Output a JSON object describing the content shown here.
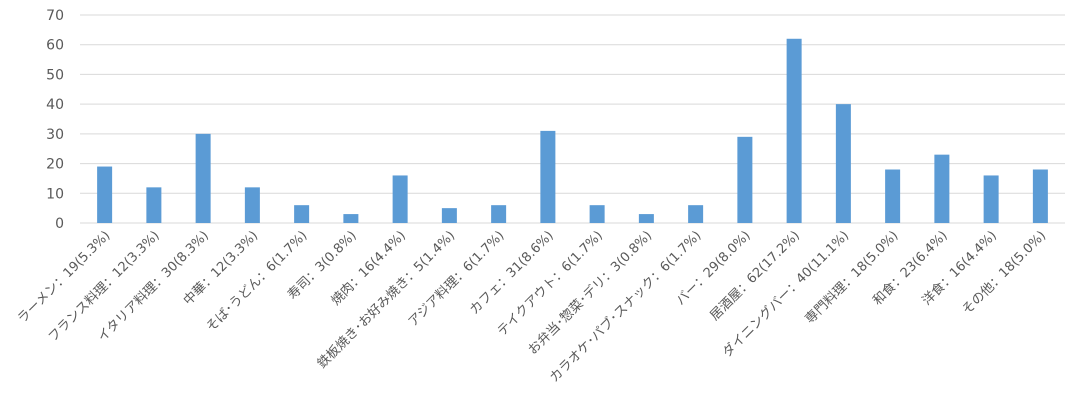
{
  "chart_data": {
    "type": "bar",
    "categories": [
      "ラーメン：19(5.3%)",
      "フランス料理：12(3.3%)",
      "イタリア料理：30(8.3%)",
      "中華：12(3.3%)",
      "そば･うどん：6(1.7%)",
      "寿司：3(0.8%)",
      "焼肉：16(4.4%)",
      "鉄板焼き･お好み焼き：5(1.4%)",
      "アジア料理：6(1.7%)",
      "カフェ：31(8.6%)",
      "テイクアウト：6(1.7%)",
      "お弁当･惣菜･デリ：3(0.8%)",
      "カラオケ･パブ･スナック：6(1.7%)",
      "バー：29(8.0%)",
      "居酒屋：62(17.2%)",
      "ダイニングバー：40(11.1%)",
      "専門料理：18(5.0%)",
      "和食：23(6.4%)",
      "洋食：16(4.4%)",
      "その他：18(5.0%)"
    ],
    "values": [
      19,
      12,
      30,
      12,
      6,
      3,
      16,
      5,
      6,
      31,
      6,
      3,
      6,
      29,
      62,
      40,
      18,
      23,
      16,
      18
    ],
    "yticks": [
      "0",
      "10",
      "20",
      "30",
      "40",
      "50",
      "60",
      "70"
    ],
    "ylim": [
      0,
      70
    ],
    "grid": true,
    "legend": "none",
    "bar_color": "#5B9BD5"
  }
}
